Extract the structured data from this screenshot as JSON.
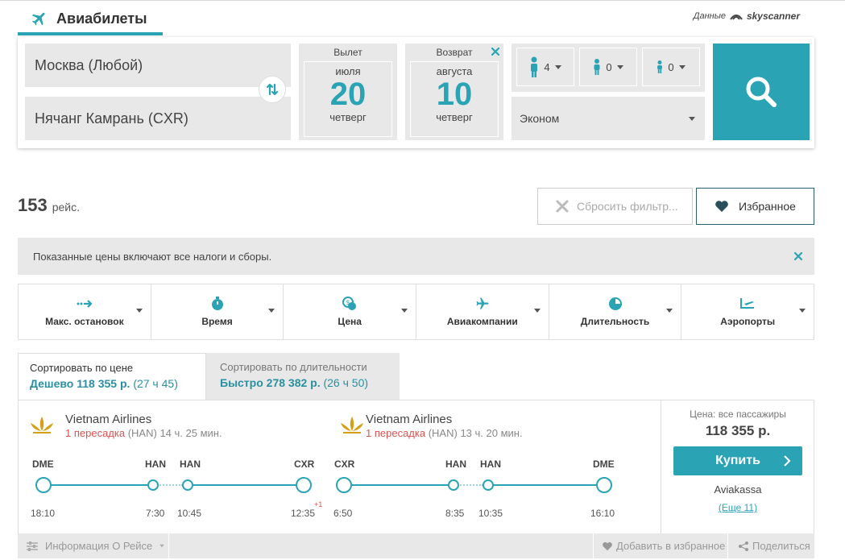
{
  "header": {
    "title": "Авиабилеты",
    "provider_label": "Данные",
    "provider_name": "skyscanner"
  },
  "search": {
    "from": "Москва (Любой)",
    "to": "Нячанг Камрань (CXR)",
    "departure": {
      "label": "Вылет",
      "month": "июля",
      "day": "20",
      "weekday": "четверг"
    },
    "return": {
      "label": "Возврат",
      "month": "августа",
      "day": "10",
      "weekday": "четверг"
    },
    "passengers": {
      "adults": "4",
      "children": "0",
      "infants": "0"
    },
    "cabin_class": "Эконом"
  },
  "results": {
    "count": "153",
    "count_unit": "рейс.",
    "reset_filters_label": "Сбросить фильтр...",
    "favorites_label": "Избранное",
    "notice": "Показанные цены включают все налоги и сборы."
  },
  "filters": [
    {
      "label": "Макс. остановок",
      "icon": "route-arrow-icon"
    },
    {
      "label": "Время",
      "icon": "stopwatch-icon"
    },
    {
      "label": "Цена",
      "icon": "coins-icon"
    },
    {
      "label": "Авиакомпании",
      "icon": "plane-icon"
    },
    {
      "label": "Длительность",
      "icon": "clock-icon"
    },
    {
      "label": "Аэропорты",
      "icon": "takeoff-icon"
    }
  ],
  "sort": {
    "by_price": {
      "title": "Сортировать по цене",
      "value": "Дешево 118 355 р.",
      "duration": "(27 ч 45)"
    },
    "by_duration": {
      "title": "Сортировать по длительности",
      "value": "Быстро 278 382 р.",
      "duration": "(26 ч 50)"
    }
  },
  "result": {
    "outbound": {
      "airline": "Vietnam Airlines",
      "stops": "1 пересадка",
      "via": "(HAN)",
      "duration": "14 ч. 25 мин.",
      "codes": [
        "DME",
        "HAN",
        "HAN",
        "CXR"
      ],
      "times": [
        "18:10",
        "7:30",
        "10:45",
        "12:35"
      ],
      "day_shift": "+1"
    },
    "inbound": {
      "airline": "Vietnam Airlines",
      "stops": "1 пересадка",
      "via": "(HAN)",
      "duration": "13 ч. 20 мин.",
      "codes": [
        "CXR",
        "HAN",
        "HAN",
        "DME"
      ],
      "times": [
        "6:50",
        "8:35",
        "10:35",
        "16:10"
      ]
    },
    "price_label": "Цена: все пассажиры",
    "price": "118 355 р.",
    "buy_label": "Купить",
    "agent": "Aviakassa",
    "more_label": "(Еще 11)"
  },
  "bottom": {
    "info_label": "Информация О Рейсе",
    "add_fav_label": "Добавить в избранное",
    "share_label": "Поделиться"
  },
  "colors": {
    "accent": "#2aa3b5",
    "stop_red": "#d9534f",
    "panel_gray": "#e8e8e8"
  }
}
